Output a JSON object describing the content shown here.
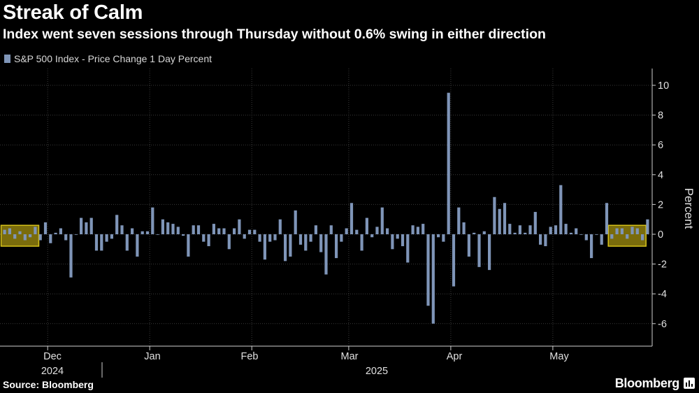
{
  "header": {
    "title": "Streak of Calm",
    "subtitle": "Index went seven sessions through Thursday without 0.6% swing in either direction"
  },
  "footer": {
    "source": "Source: Bloomberg",
    "brand": "Bloomberg"
  },
  "colors": {
    "bar": "#7f95b8",
    "highlight_fill": "#7a6c0c",
    "highlight_border": "#d6c21a",
    "grid": "#3a3a3a"
  },
  "chart_data": {
    "type": "bar",
    "title": "Streak of Calm",
    "subtitle": "Index went seven sessions through Thursday without 0.6% swing in either direction",
    "ylabel": "Percent",
    "ylim": [
      -6.5,
      10.5
    ],
    "yticks": [
      10,
      8,
      6,
      4,
      2,
      0,
      -2,
      -4,
      -6
    ],
    "grid": true,
    "y_axis_side": "right",
    "legend": {
      "label": "S&P 500 Index - Price Change 1 Day Percent",
      "placement": "top-left"
    },
    "x_month_labels": [
      {
        "label": "Dec",
        "index": 9
      },
      {
        "label": "Jan",
        "index": 29
      },
      {
        "label": "Feb",
        "index": 49
      },
      {
        "label": "Mar",
        "index": 68
      },
      {
        "label": "Apr",
        "index": 88
      },
      {
        "label": "May",
        "index": 108
      }
    ],
    "x_year_labels": [
      {
        "label": "2024",
        "index": 9
      },
      {
        "label": "2025",
        "index": 73
      }
    ],
    "series": [
      {
        "name": "S&P 500 Index - Price Change 1 Day Percent",
        "values": [
          0.3,
          0.4,
          -0.3,
          0.2,
          -0.4,
          -0.2,
          0.5,
          -0.4,
          0.8,
          -0.6,
          0.1,
          0.4,
          -0.4,
          -2.9,
          0.0,
          1.1,
          0.8,
          1.1,
          -1.1,
          -1.1,
          -0.5,
          -0.3,
          1.3,
          0.6,
          -1.1,
          0.4,
          -1.5,
          0.2,
          0.2,
          1.8,
          0.0,
          1.0,
          0.8,
          0.7,
          0.5,
          -0.1,
          -1.5,
          0.6,
          0.6,
          -0.5,
          -0.8,
          0.7,
          0.4,
          0.4,
          -1.0,
          0.4,
          1.0,
          -0.3,
          0.3,
          0.3,
          -0.5,
          -1.7,
          -0.5,
          -0.4,
          1.0,
          -1.8,
          -1.5,
          1.6,
          -0.7,
          -1.1,
          -0.5,
          0.6,
          -1.2,
          -2.7,
          0.6,
          -1.6,
          -0.5,
          0.4,
          2.1,
          0.3,
          -1.1,
          1.1,
          -0.2,
          0.5,
          1.8,
          0.4,
          -1.0,
          -0.3,
          -0.8,
          -1.9,
          0.6,
          0.5,
          0.7,
          -4.8,
          -6.0,
          -0.2,
          -0.5,
          9.5,
          -3.5,
          1.8,
          0.8,
          -1.5,
          0.1,
          -2.2,
          0.2,
          -2.4,
          2.5,
          1.7,
          2.1,
          0.7,
          0.1,
          0.6,
          0.1,
          0.6,
          1.5,
          -0.7,
          -0.8,
          0.5,
          0.6,
          3.3,
          0.7,
          0.1,
          0.4,
          0.0,
          -0.4,
          -1.6,
          0.0,
          -0.7,
          2.1,
          -0.3,
          0.4,
          0.4,
          -0.3,
          0.5,
          0.4,
          -0.4,
          1.0
        ]
      }
    ],
    "highlights": [
      {
        "start_index": 0,
        "end_index": 6
      },
      {
        "start_index": 119,
        "end_index": 125
      }
    ]
  }
}
